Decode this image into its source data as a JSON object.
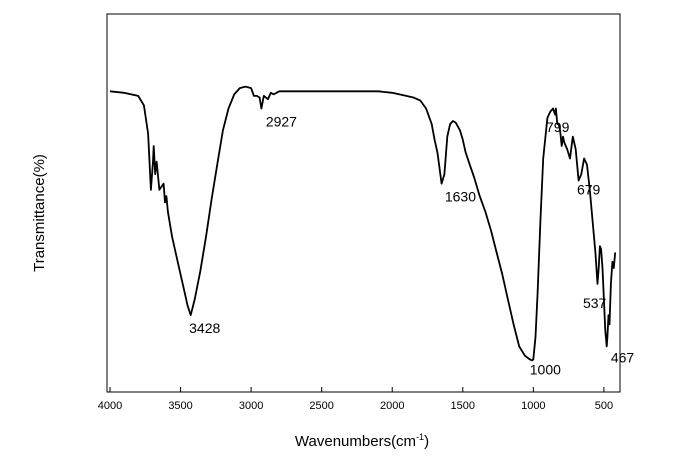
{
  "chart_data": {
    "type": "line",
    "title": "",
    "xlabel": "Wavenumbers(cm",
    "xlabel_sup": "-1",
    "xlabel_close": ")",
    "ylabel": "Transmittance(%)",
    "xlim": [
      4000,
      400
    ],
    "x_reversed": true,
    "ylim": [
      0,
      100
    ],
    "y_ticks_labeled": false,
    "grid": false,
    "legend": "none",
    "x_ticks": [
      4000,
      3500,
      3000,
      2500,
      2000,
      1500,
      1000,
      500
    ],
    "x_tick_labels": [
      "4000",
      "3500",
      "3000",
      "2500",
      "2000",
      "1500",
      "1000",
      "500"
    ],
    "series": [
      {
        "x": [
          4000,
          3900,
          3800,
          3760,
          3730,
          3710,
          3695,
          3690,
          3680,
          3670,
          3650,
          3620,
          3610,
          3600,
          3590,
          3560,
          3520,
          3480,
          3450,
          3428,
          3400,
          3360,
          3320,
          3280,
          3240,
          3200,
          3160,
          3120,
          3080,
          3040,
          3000,
          2980,
          2960,
          2940,
          2927,
          2910,
          2880,
          2860,
          2840,
          2820,
          2800,
          2600,
          2400,
          2200,
          2100,
          2000,
          1900,
          1850,
          1800,
          1760,
          1720,
          1700,
          1680,
          1650,
          1630,
          1610,
          1590,
          1570,
          1550,
          1520,
          1500,
          1480,
          1450,
          1420,
          1380,
          1340,
          1300,
          1260,
          1220,
          1180,
          1140,
          1100,
          1060,
          1030,
          1010,
          1000,
          985,
          970,
          950,
          930,
          900,
          880,
          860,
          845,
          840,
          830,
          820,
          810,
          799,
          790,
          780,
          760,
          740,
          720,
          700,
          679,
          660,
          640,
          620,
          600,
          580,
          560,
          545,
          537,
          528,
          520,
          510,
          500,
          490,
          480,
          475,
          467,
          460,
          450,
          440,
          430,
          420
        ],
        "y": [
          86.5,
          86,
          85,
          82,
          73,
          55,
          64,
          69,
          60,
          64,
          55,
          57,
          51,
          53,
          48,
          40,
          32,
          24,
          18,
          15,
          20,
          29,
          40,
          52,
          63,
          74,
          81,
          85.5,
          87.5,
          88,
          87.5,
          85,
          85,
          84.5,
          81,
          85,
          84,
          86,
          85.5,
          86,
          86.5,
          86.5,
          86.5,
          86.5,
          86.5,
          86,
          85,
          84.5,
          83.5,
          81,
          76,
          71,
          67,
          57,
          60,
          72,
          76,
          77,
          76.5,
          74,
          71,
          67,
          63,
          59,
          53,
          48,
          42,
          35,
          28,
          20,
          12,
          5,
          2,
          1,
          0.5,
          0.8,
          8,
          22,
          45,
          65,
          78,
          80,
          81,
          79,
          81,
          76,
          76,
          74,
          69,
          72,
          70,
          68,
          65,
          72,
          68,
          58,
          60,
          65,
          63,
          55,
          45,
          35,
          25,
          30,
          37,
          36,
          30,
          20,
          10,
          5,
          8,
          15,
          12,
          25,
          32,
          30,
          35
        ]
      }
    ],
    "annotations": [
      {
        "label": "3428",
        "x": 3428,
        "y": 15
      },
      {
        "label": "2927",
        "x": 2927,
        "y": 81
      },
      {
        "label": "1630",
        "x": 1630,
        "y": 57
      },
      {
        "label": "1000",
        "x": 1000,
        "y": 0.5
      },
      {
        "label": "799",
        "x": 799,
        "y": 69
      },
      {
        "label": "679",
        "x": 679,
        "y": 58
      },
      {
        "label": "537",
        "x": 537,
        "y": 25
      },
      {
        "label": "467",
        "x": 467,
        "y": 5
      }
    ]
  }
}
